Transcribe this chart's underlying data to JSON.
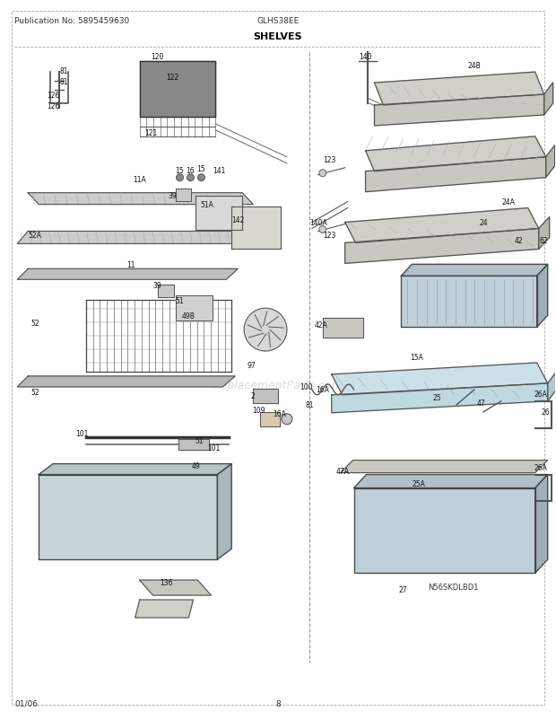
{
  "title": "SHELVES",
  "pub_no": "Publication No: 5895459630",
  "model": "GLHS38EE",
  "page": "8",
  "date": "01/06",
  "bg_color": "#ffffff",
  "text_color": "#000000",
  "fig_width": 6.2,
  "fig_height": 8.03,
  "dpi": 100
}
